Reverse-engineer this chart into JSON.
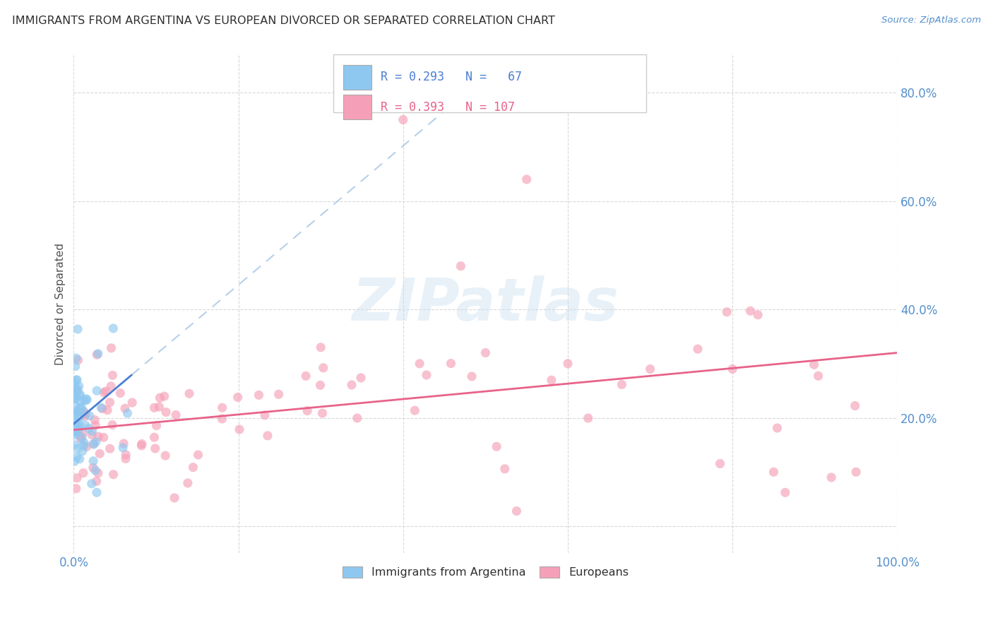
{
  "title": "IMMIGRANTS FROM ARGENTINA VS EUROPEAN DIVORCED OR SEPARATED CORRELATION CHART",
  "source": "Source: ZipAtlas.com",
  "ylabel": "Divorced or Separated",
  "xlim": [
    0.0,
    1.0
  ],
  "ylim": [
    -0.05,
    0.87
  ],
  "yticks": [
    0.0,
    0.2,
    0.4,
    0.6,
    0.8
  ],
  "ytick_labels": [
    "",
    "20.0%",
    "40.0%",
    "60.0%",
    "80.0%"
  ],
  "xticks": [
    0.0,
    0.2,
    0.4,
    0.6,
    0.8,
    1.0
  ],
  "xtick_labels": [
    "0.0%",
    "",
    "",
    "",
    "",
    "100.0%"
  ],
  "R_blue": 0.293,
  "N_blue": 67,
  "R_pink": 0.393,
  "N_pink": 107,
  "blue_scatter_color": "#8ec8f0",
  "pink_scatter_color": "#f5a0b8",
  "blue_line_color": "#4a7fd4",
  "pink_line_color": "#e8638a",
  "blue_dashed_color": "#aac8e8",
  "watermark": "ZIPatlas",
  "background_color": "#ffffff",
  "grid_color": "#d8d8d8",
  "title_color": "#303030",
  "axis_tick_color": "#5590cc",
  "ylabel_color": "#505050",
  "source_color": "#5590cc",
  "legend_box_color": "#cccccc",
  "blue_seed": 42,
  "pink_seed": 77
}
